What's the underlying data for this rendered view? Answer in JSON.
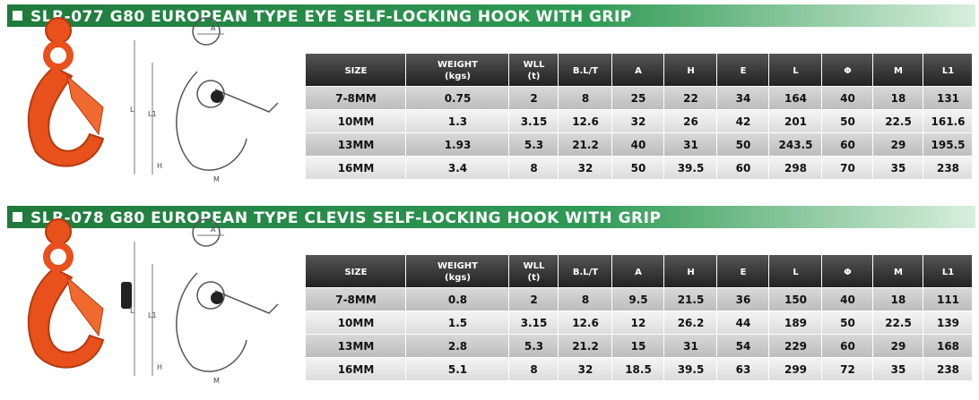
{
  "sections": [
    {
      "title": "SLR-077   G80 EUROPEAN TYPE EYE SELF-LOCKING HOOK WITH GRIP",
      "drawing_labels": [
        "A",
        "L",
        "L1",
        "H",
        "M"
      ],
      "table": {
        "headers": [
          [
            "SIZE"
          ],
          [
            "WEIGHT",
            "(kgs)"
          ],
          [
            "WLL",
            "(t)"
          ],
          [
            "B.L/T"
          ],
          [
            "A"
          ],
          [
            "H"
          ],
          [
            "E"
          ],
          [
            "L"
          ],
          [
            "Φ"
          ],
          [
            "M"
          ],
          [
            "L1"
          ]
        ],
        "rows": [
          [
            "7-8MM",
            "0.75",
            "2",
            "8",
            "25",
            "22",
            "34",
            "164",
            "40",
            "18",
            "131"
          ],
          [
            "10MM",
            "1.3",
            "3.15",
            "12.6",
            "32",
            "26",
            "42",
            "201",
            "50",
            "22.5",
            "161.6"
          ],
          [
            "13MM",
            "1.93",
            "5.3",
            "21.2",
            "40",
            "31",
            "50",
            "243.5",
            "60",
            "29",
            "195.5"
          ],
          [
            "16MM",
            "3.4",
            "8",
            "32",
            "50",
            "39.5",
            "60",
            "298",
            "70",
            "35",
            "238"
          ]
        ]
      }
    },
    {
      "title": "SLR-078   G80 EUROPEAN TYPE CLEVIS SELF-LOCKING HOOK WITH GRIP",
      "drawing_labels": [
        "A",
        "L",
        "L1",
        "H",
        "M"
      ],
      "table": {
        "headers": [
          [
            "SIZE"
          ],
          [
            "WEIGHT",
            "(kgs)"
          ],
          [
            "WLL",
            "(t)"
          ],
          [
            "B.L/T"
          ],
          [
            "A"
          ],
          [
            "H"
          ],
          [
            "E"
          ],
          [
            "L"
          ],
          [
            "Φ"
          ],
          [
            "M"
          ],
          [
            "L1"
          ]
        ],
        "rows": [
          [
            "7-8MM",
            "0.8",
            "2",
            "8",
            "9.5",
            "21.5",
            "36",
            "150",
            "40",
            "18",
            "111"
          ],
          [
            "10MM",
            "1.5",
            "3.15",
            "12.6",
            "12",
            "26.2",
            "44",
            "189",
            "50",
            "22.5",
            "139"
          ],
          [
            "13MM",
            "2.8",
            "5.3",
            "21.2",
            "15",
            "31",
            "54",
            "229",
            "60",
            "29",
            "168"
          ],
          [
            "16MM",
            "5.1",
            "8",
            "32",
            "18.5",
            "39.5",
            "63",
            "299",
            "72",
            "35",
            "238"
          ]
        ]
      }
    }
  ]
}
